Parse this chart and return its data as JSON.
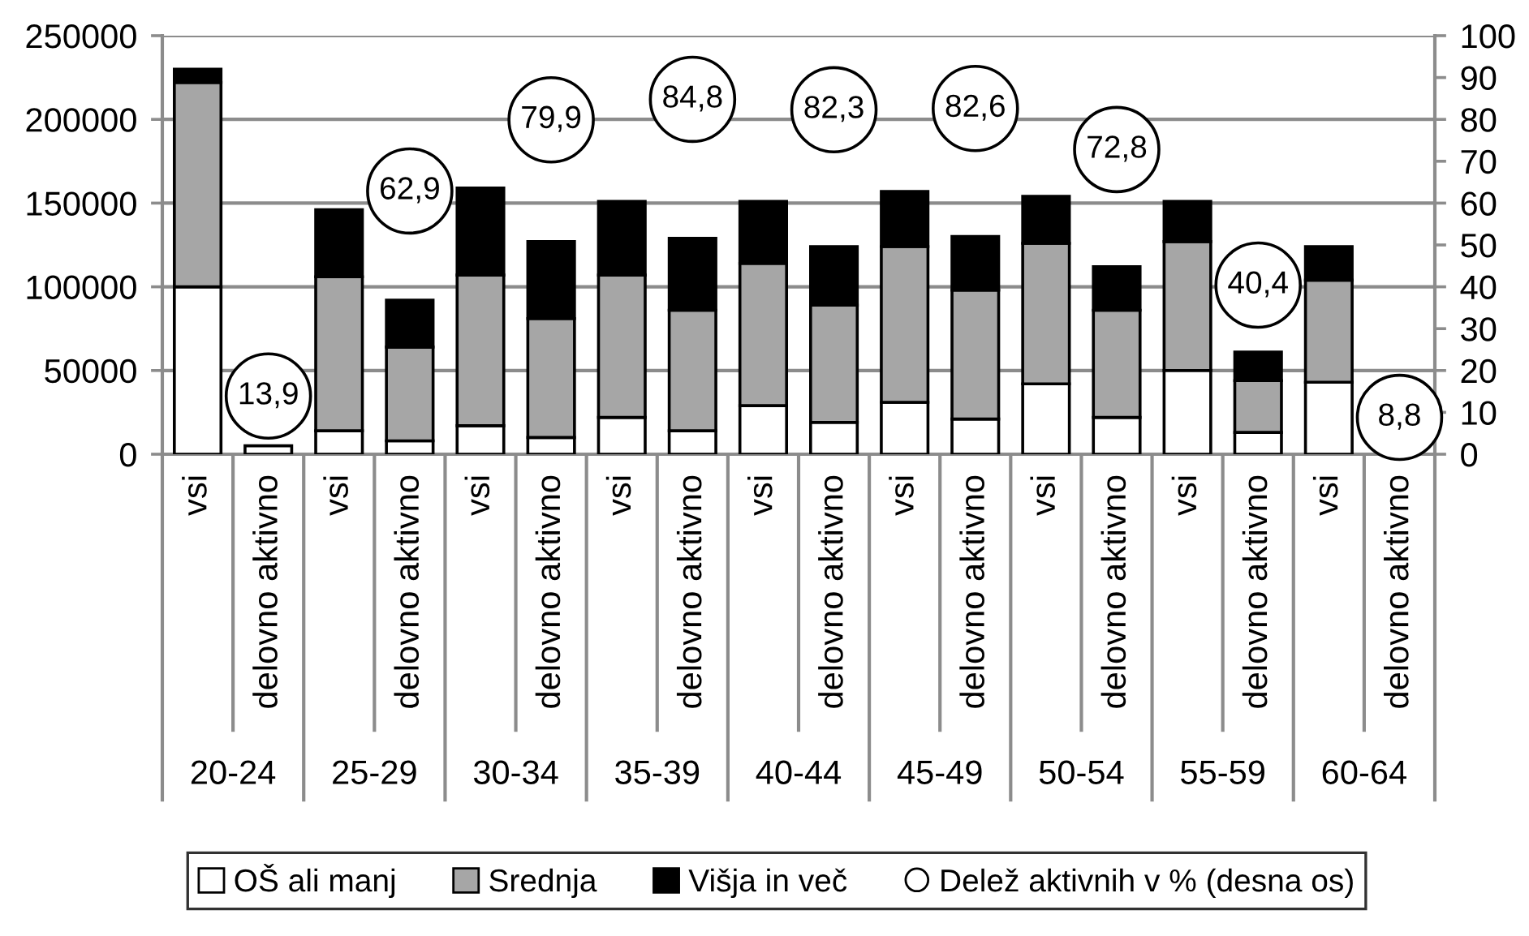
{
  "chart_data": {
    "type": "bar",
    "stacked": true,
    "categories": [
      "vsi",
      "delovno aktivno",
      "vsi",
      "delovno aktivno",
      "vsi",
      "delovno aktivno",
      "vsi",
      "delovno aktivno",
      "vsi",
      "delovno aktivno",
      "vsi",
      "delovno aktivno",
      "vsi",
      "delovno aktivno",
      "vsi",
      "delovno aktivno",
      "vsi",
      "delovno aktivno"
    ],
    "series": [
      {
        "name": "OŠ ali manj",
        "color": "#ffffff",
        "values": [
          100000,
          5000,
          14000,
          8000,
          17000,
          10000,
          22000,
          14000,
          29000,
          19000,
          31000,
          21000,
          42000,
          22000,
          50000,
          13000,
          43000,
          null
        ]
      },
      {
        "name": "Srednja",
        "color": "#a6a6a6",
        "values": [
          122000,
          null,
          92000,
          56000,
          90000,
          71000,
          85000,
          72000,
          85000,
          70000,
          93000,
          77000,
          84000,
          64000,
          77000,
          31000,
          61000,
          null
        ]
      },
      {
        "name": "Višja in več",
        "color": "#000000",
        "values": [
          8000,
          null,
          40000,
          28000,
          52000,
          46000,
          44000,
          43000,
          37000,
          35000,
          33000,
          32000,
          28000,
          26000,
          24000,
          17000,
          20000,
          null
        ]
      },
      {
        "name": "Delež aktivnih v % (desna os)",
        "type": "scatter",
        "axis": "y2",
        "color": "#ffffff",
        "marker": "circle",
        "values": [
          null,
          13.9,
          null,
          62.9,
          null,
          79.9,
          null,
          84.8,
          null,
          82.3,
          null,
          82.6,
          null,
          72.8,
          null,
          40.4,
          null,
          8.8
        ],
        "value_labels": [
          null,
          "13,9",
          null,
          "62,9",
          null,
          "79,9",
          null,
          "84,8",
          null,
          "82,3",
          null,
          "82,6",
          null,
          "72,8",
          null,
          "40,4",
          null,
          "8,8"
        ]
      }
    ],
    "ylim": [
      0,
      250000
    ],
    "yticks": [
      0,
      50000,
      100000,
      150000,
      200000,
      250000
    ],
    "y2lim": [
      0,
      100
    ],
    "y2ticks": [
      0,
      10,
      20,
      30,
      40,
      50,
      60,
      70,
      80,
      90,
      100
    ],
    "grid": "y",
    "legend": "bottom",
    "annotations": [
      "20-24",
      "25-29",
      "30-34",
      "35-39",
      "40-44",
      "45-49",
      "50-54",
      "55-59",
      "60-64"
    ]
  }
}
